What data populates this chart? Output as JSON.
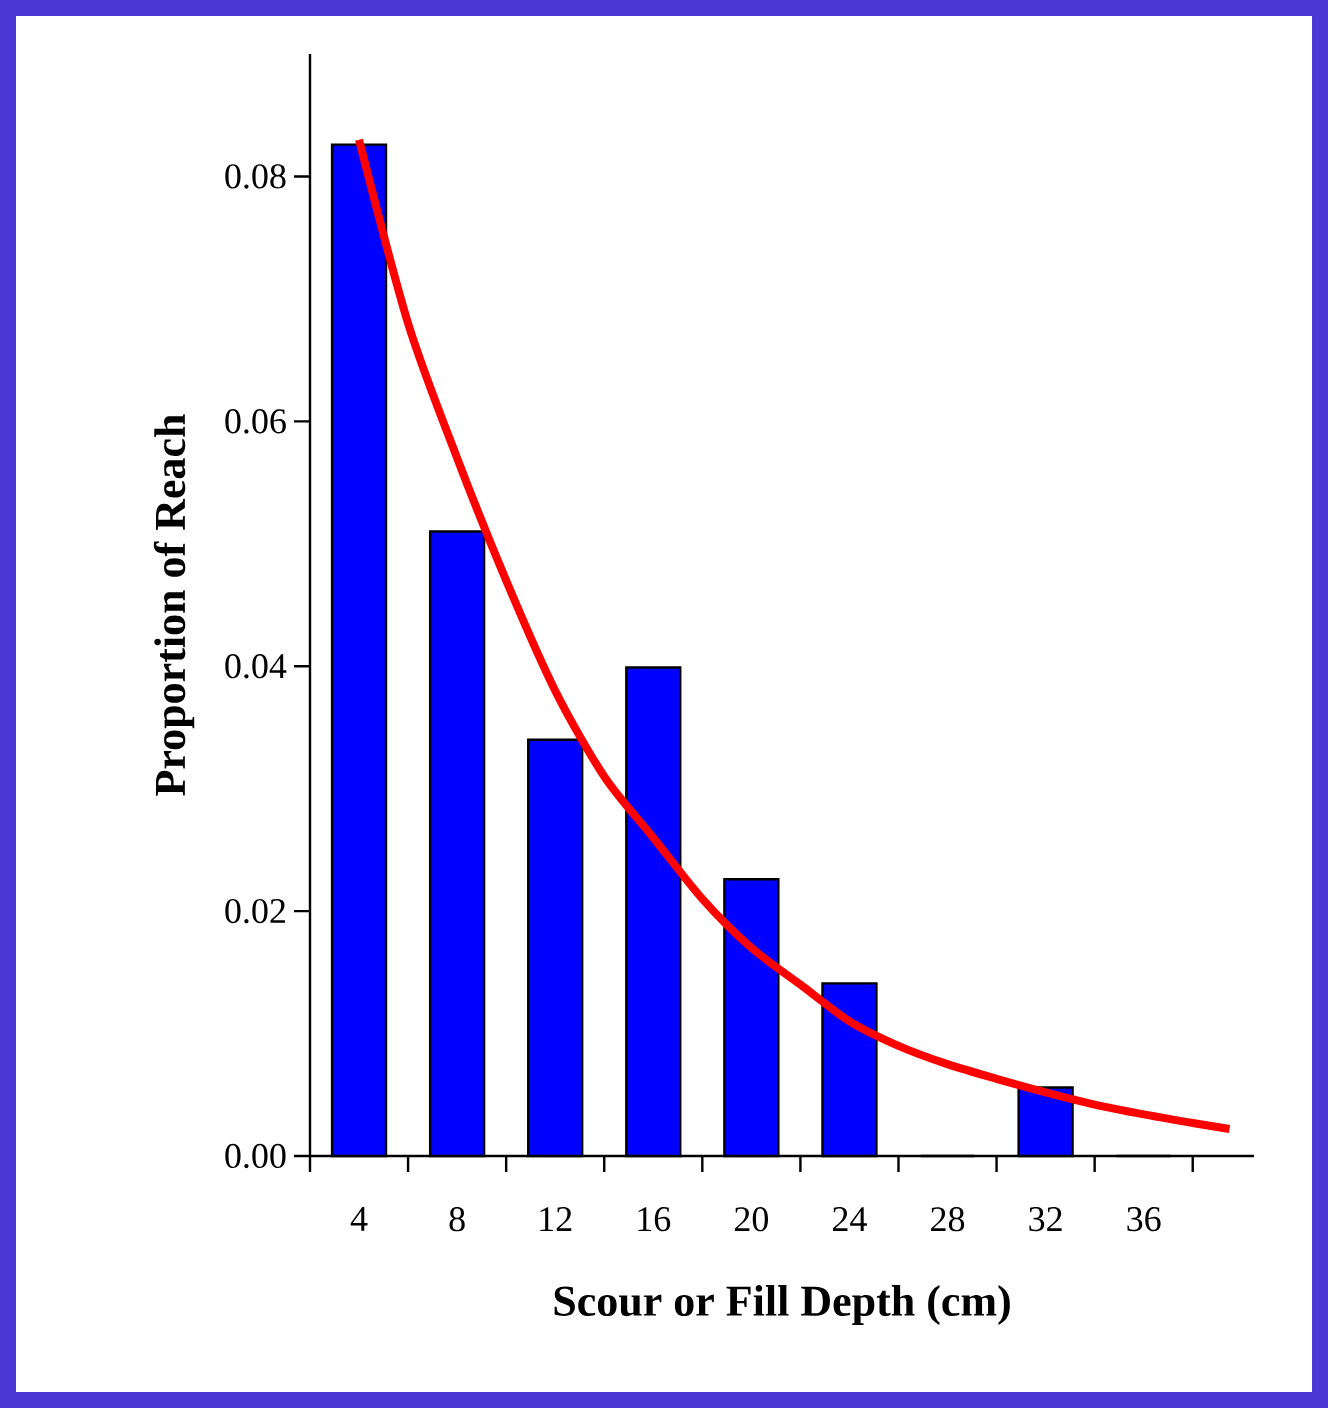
{
  "chart_data": {
    "type": "bar",
    "xlabel": "Scour or Fill Depth (cm)",
    "ylabel": "Proportion of Reach",
    "series": [
      {
        "color": "#0000ff",
        "x": [
          4,
          8,
          12,
          16,
          20,
          24,
          28,
          32,
          36
        ],
        "values": [
          0.0826,
          0.051,
          0.034,
          0.0399,
          0.0226,
          0.0141,
          0,
          0.0056,
          0
        ]
      },
      {
        "type": "line",
        "color": "#ff0000",
        "x": [
          4,
          6,
          8,
          10,
          12,
          14,
          16,
          18,
          20,
          22,
          24,
          26,
          28,
          30,
          32,
          34,
          36,
          38,
          39.5
        ],
        "values": [
          0.083,
          0.068,
          0.057,
          0.047,
          0.038,
          0.031,
          0.026,
          0.021,
          0.017,
          0.014,
          0.011,
          0.009,
          0.0075,
          0.0063,
          0.0052,
          0.0042,
          0.0034,
          0.0027,
          0.0022
        ]
      }
    ],
    "xlim": [
      2,
      40.5
    ],
    "xticks": [
      {
        "value": 2,
        "label": null
      },
      4,
      {
        "value": 6,
        "label": null
      },
      8,
      {
        "value": 10,
        "label": null
      },
      12,
      {
        "value": 14,
        "label": null
      },
      16,
      {
        "value": 18,
        "label": null
      },
      20,
      {
        "value": 22,
        "label": null
      },
      24,
      {
        "value": 26,
        "label": null
      },
      28,
      {
        "value": 30,
        "label": null
      },
      32,
      {
        "value": 34,
        "label": null
      },
      36,
      {
        "value": 38,
        "label": null
      }
    ],
    "ylim": [
      0,
      0.09
    ],
    "yticks": [
      {
        "value": 0,
        "label": "0.00"
      },
      {
        "value": 0.02,
        "label": "0.02"
      },
      {
        "value": 0.04,
        "label": "0.04"
      },
      {
        "value": 0.06,
        "label": "0.06"
      },
      {
        "value": 0.08,
        "label": "0.08"
      }
    ]
  }
}
